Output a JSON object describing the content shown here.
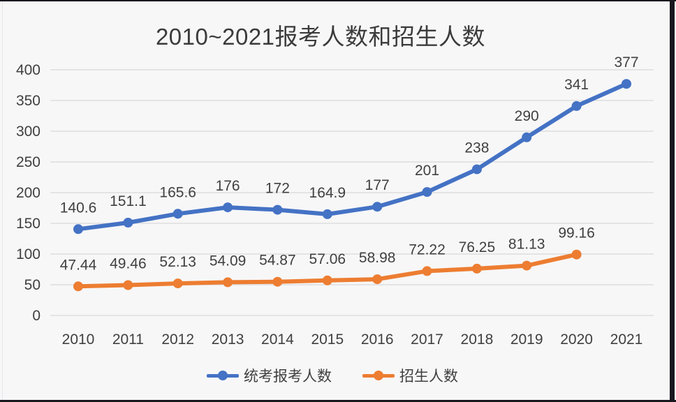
{
  "page": {
    "background": "#f7f7f8",
    "border_color": "#17171d"
  },
  "chart_data": {
    "type": "line",
    "title": "2010~2021报考人数和招生人数",
    "categories": [
      "2010",
      "2011",
      "2012",
      "2013",
      "2014",
      "2015",
      "2016",
      "2017",
      "2018",
      "2019",
      "2020",
      "2021"
    ],
    "series": [
      {
        "name": "统考报考人数",
        "color": "#4472c4",
        "values": [
          140.6,
          151.1,
          165.6,
          176,
          172,
          164.9,
          177,
          201,
          238,
          290,
          341,
          377
        ]
      },
      {
        "name": "招生人数",
        "color": "#ed7d31",
        "values": [
          47.44,
          49.46,
          52.13,
          54.09,
          54.87,
          57.06,
          58.98,
          72.22,
          76.25,
          81.13,
          99.16,
          null
        ]
      }
    ],
    "ylim": [
      0,
      400
    ],
    "yticks": [
      0,
      50,
      100,
      150,
      200,
      250,
      300,
      350,
      400
    ],
    "grid": true,
    "grid_color": "#d9d9d9",
    "text_color": "#404040",
    "legend_position": "bottom",
    "data_labels": true
  }
}
